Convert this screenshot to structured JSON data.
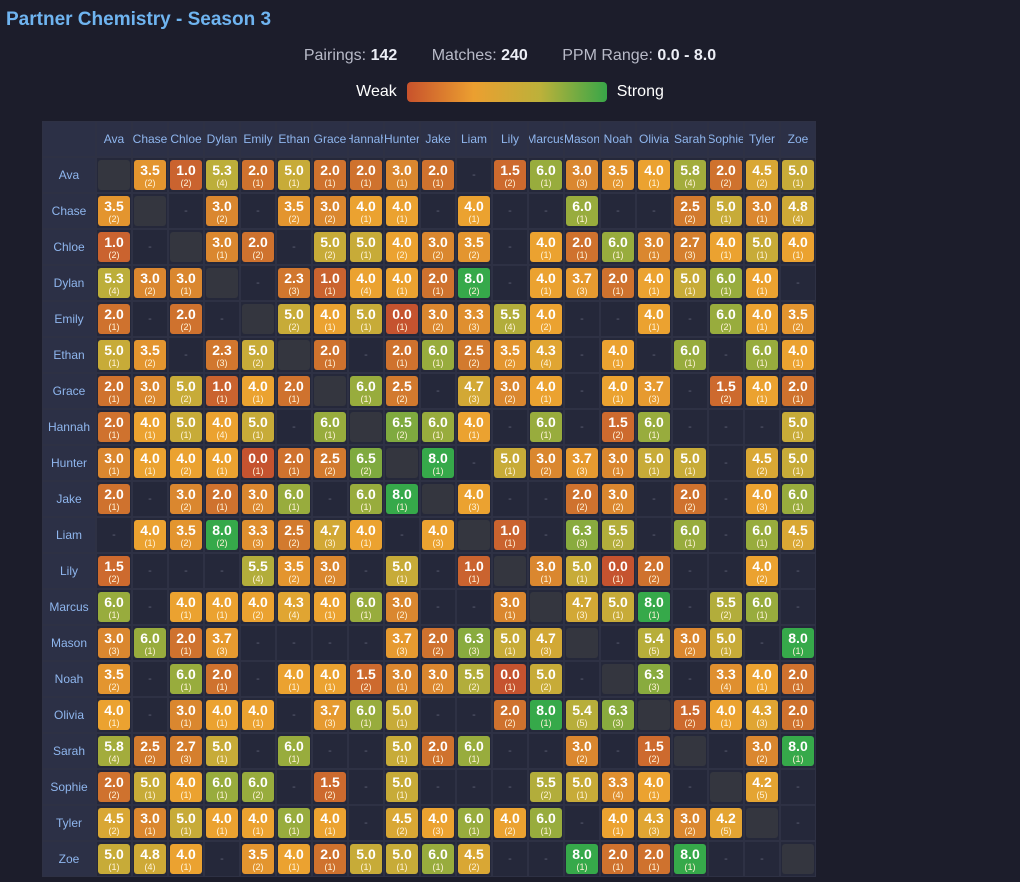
{
  "title": "Partner Chemistry - Season 3",
  "stats": {
    "pairings_label": "Pairings:",
    "pairings_value": "142",
    "matches_label": "Matches:",
    "matches_value": "240",
    "ppm_label": "PPM Range:",
    "ppm_value": "0.0 - 8.0"
  },
  "legend": {
    "weak": "Weak",
    "strong": "Strong"
  },
  "empty_symbol": "-",
  "colors": {
    "background": "#1c1d2b",
    "title": "#6fb4f0",
    "header": "#8fb6ee",
    "weak": "#c8522c",
    "mid": "#eb9f30",
    "strong": "#38a648"
  },
  "players": [
    "Ava",
    "Chase",
    "Chloe",
    "Dylan",
    "Emily",
    "Ethan",
    "Grace",
    "Hannah",
    "Hunter",
    "Jake",
    "Liam",
    "Lily",
    "Marcus",
    "Mason",
    "Noah",
    "Olivia",
    "Sarah",
    "Sophie",
    "Tyler",
    "Zoe"
  ],
  "matrix": [
    [
      "",
      "3.5|2",
      "1.0|2",
      "5.3|4",
      "2.0|1",
      "5.0|1",
      "2.0|1",
      "2.0|1",
      "3.0|1",
      "2.0|1",
      "-",
      "1.5|2",
      "6.0|1",
      "3.0|3",
      "3.5|2",
      "4.0|1",
      "5.8|4",
      "2.0|2",
      "4.5|2",
      "5.0|1"
    ],
    [
      "3.5|2",
      "",
      "-",
      "3.0|2",
      "-",
      "3.5|2",
      "3.0|2",
      "4.0|1",
      "4.0|1",
      "-",
      "4.0|1",
      "-",
      "-",
      "6.0|1",
      "-",
      "-",
      "2.5|2",
      "5.0|1",
      "3.0|1",
      "4.8|4"
    ],
    [
      "1.0|2",
      "-",
      "",
      "3.0|1",
      "2.0|2",
      "-",
      "5.0|2",
      "5.0|1",
      "4.0|2",
      "3.0|2",
      "3.5|2",
      "-",
      "4.0|1",
      "2.0|1",
      "6.0|1",
      "3.0|1",
      "2.7|3",
      "4.0|1",
      "5.0|1",
      "4.0|1"
    ],
    [
      "5.3|4",
      "3.0|2",
      "3.0|1",
      "",
      "-",
      "2.3|3",
      "1.0|1",
      "4.0|4",
      "4.0|1",
      "2.0|1",
      "8.0|2",
      "-",
      "4.0|1",
      "3.7|3",
      "2.0|1",
      "4.0|1",
      "5.0|1",
      "6.0|1",
      "4.0|1",
      "-"
    ],
    [
      "2.0|1",
      "-",
      "2.0|2",
      "-",
      "",
      "5.0|2",
      "4.0|1",
      "5.0|1",
      "0.0|1",
      "3.0|2",
      "3.3|3",
      "5.5|4",
      "4.0|2",
      "-",
      "-",
      "4.0|1",
      "-",
      "6.0|2",
      "4.0|1",
      "3.5|2"
    ],
    [
      "5.0|1",
      "3.5|2",
      "-",
      "2.3|3",
      "5.0|2",
      "",
      "2.0|1",
      "-",
      "2.0|1",
      "6.0|1",
      "2.5|2",
      "3.5|2",
      "4.3|4",
      "-",
      "4.0|1",
      "-",
      "6.0|1",
      "-",
      "6.0|1",
      "4.0|1"
    ],
    [
      "2.0|1",
      "3.0|2",
      "5.0|2",
      "1.0|1",
      "4.0|1",
      "2.0|1",
      "",
      "6.0|1",
      "2.5|2",
      "-",
      "4.7|3",
      "3.0|2",
      "4.0|1",
      "-",
      "4.0|1",
      "3.7|3",
      "-",
      "1.5|2",
      "4.0|1",
      "2.0|1"
    ],
    [
      "2.0|1",
      "4.0|1",
      "5.0|1",
      "4.0|4",
      "5.0|1",
      "-",
      "6.0|1",
      "",
      "6.5|2",
      "6.0|1",
      "4.0|1",
      "-",
      "6.0|1",
      "-",
      "1.5|2",
      "6.0|1",
      "-",
      "-",
      "-",
      "5.0|1"
    ],
    [
      "3.0|1",
      "4.0|1",
      "4.0|2",
      "4.0|1",
      "0.0|1",
      "2.0|1",
      "2.5|2",
      "6.5|2",
      "",
      "8.0|1",
      "-",
      "5.0|1",
      "3.0|2",
      "3.7|3",
      "3.0|1",
      "5.0|1",
      "5.0|1",
      "-",
      "4.5|2",
      "5.0|1"
    ],
    [
      "2.0|1",
      "-",
      "3.0|2",
      "2.0|1",
      "3.0|2",
      "6.0|1",
      "-",
      "6.0|1",
      "8.0|1",
      "",
      "4.0|3",
      "-",
      "-",
      "2.0|2",
      "3.0|2",
      "-",
      "2.0|2",
      "-",
      "4.0|3",
      "6.0|1"
    ],
    [
      "-",
      "4.0|1",
      "3.5|2",
      "8.0|2",
      "3.3|3",
      "2.5|2",
      "4.7|3",
      "4.0|1",
      "-",
      "4.0|3",
      "",
      "1.0|1",
      "-",
      "6.3|3",
      "5.5|2",
      "-",
      "6.0|1",
      "-",
      "6.0|1",
      "4.5|2"
    ],
    [
      "1.5|2",
      "-",
      "-",
      "-",
      "5.5|4",
      "3.5|2",
      "3.0|2",
      "-",
      "5.0|1",
      "-",
      "1.0|1",
      "",
      "3.0|1",
      "5.0|1",
      "0.0|1",
      "2.0|2",
      "-",
      "-",
      "4.0|2",
      "-"
    ],
    [
      "6.0|1",
      "-",
      "4.0|1",
      "4.0|1",
      "4.0|2",
      "4.3|4",
      "4.0|1",
      "6.0|1",
      "3.0|2",
      "-",
      "-",
      "3.0|1",
      "",
      "4.7|3",
      "5.0|1",
      "8.0|1",
      "-",
      "5.5|2",
      "6.0|1",
      "-"
    ],
    [
      "3.0|3",
      "6.0|1",
      "2.0|1",
      "3.7|3",
      "-",
      "-",
      "-",
      "-",
      "3.7|3",
      "2.0|2",
      "6.3|3",
      "5.0|1",
      "4.7|3",
      "",
      "-",
      "5.4|5",
      "3.0|2",
      "5.0|1",
      "-",
      "8.0|1"
    ],
    [
      "3.5|2",
      "-",
      "6.0|1",
      "2.0|1",
      "-",
      "4.0|1",
      "4.0|1",
      "1.5|2",
      "3.0|1",
      "3.0|2",
      "5.5|2",
      "0.0|1",
      "5.0|2",
      "-",
      "",
      "6.3|3",
      "-",
      "3.3|4",
      "4.0|1",
      "2.0|1"
    ],
    [
      "4.0|1",
      "-",
      "3.0|1",
      "4.0|1",
      "4.0|1",
      "-",
      "3.7|3",
      "6.0|1",
      "5.0|1",
      "-",
      "-",
      "2.0|2",
      "8.0|1",
      "5.4|5",
      "6.3|3",
      "",
      "1.5|2",
      "4.0|1",
      "4.3|3",
      "2.0|1"
    ],
    [
      "5.8|4",
      "2.5|2",
      "2.7|3",
      "5.0|1",
      "-",
      "6.0|1",
      "-",
      "-",
      "5.0|1",
      "2.0|1",
      "6.0|1",
      "-",
      "-",
      "3.0|2",
      "-",
      "1.5|2",
      "",
      "-",
      "3.0|2",
      "8.0|1"
    ],
    [
      "2.0|2",
      "5.0|1",
      "4.0|1",
      "6.0|1",
      "6.0|2",
      "-",
      "1.5|2",
      "-",
      "5.0|1",
      "-",
      "-",
      "-",
      "5.5|2",
      "5.0|1",
      "3.3|4",
      "4.0|1",
      "-",
      "",
      "4.2|5",
      "-"
    ],
    [
      "4.5|2",
      "3.0|1",
      "5.0|1",
      "4.0|1",
      "4.0|1",
      "6.0|1",
      "4.0|1",
      "-",
      "4.5|2",
      "4.0|3",
      "6.0|1",
      "4.0|2",
      "6.0|1",
      "-",
      "4.0|1",
      "4.3|3",
      "3.0|2",
      "4.2|5",
      "",
      "-"
    ],
    [
      "5.0|1",
      "4.8|4",
      "4.0|1",
      "-",
      "3.5|2",
      "4.0|1",
      "2.0|1",
      "5.0|1",
      "5.0|1",
      "6.0|1",
      "4.5|2",
      "-",
      "-",
      "8.0|1",
      "2.0|1",
      "2.0|1",
      "8.0|1",
      "-",
      "-",
      ""
    ]
  ]
}
